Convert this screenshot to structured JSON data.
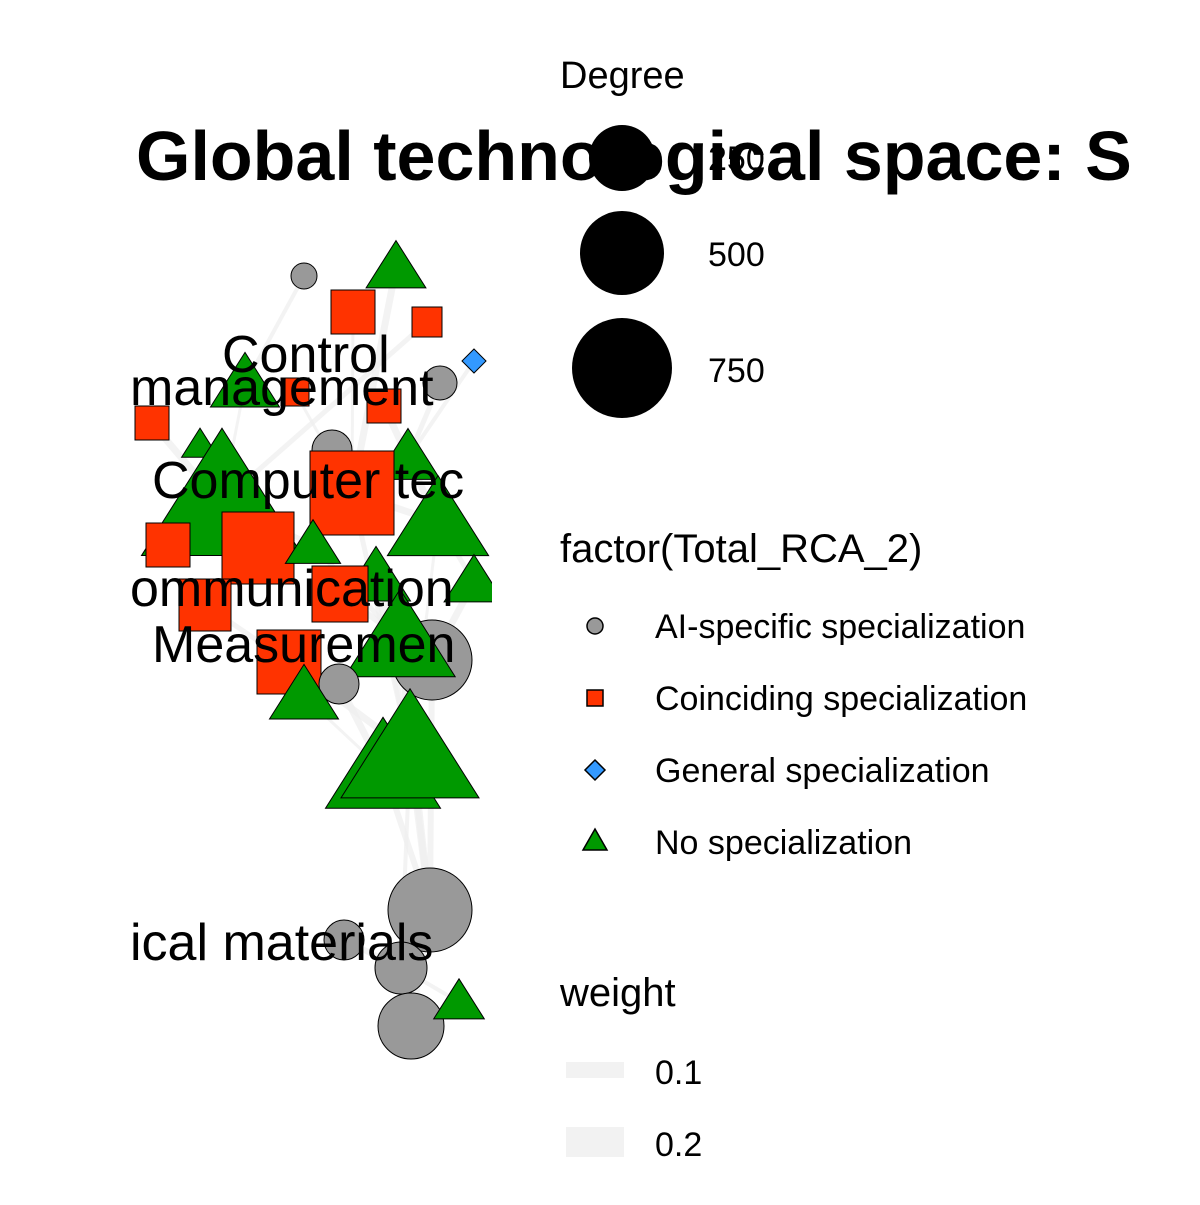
{
  "title": "Global technological space: S",
  "node_labels": [
    "Control",
    "management",
    "Computer tec",
    "ommunication",
    "Measuremen",
    "ical materials"
  ],
  "legend_degree": {
    "title": "Degree",
    "entries": [
      "250",
      "500",
      "750"
    ]
  },
  "legend_type": {
    "title": "factor(Total_RCA_2)",
    "entries": [
      {
        "label": "AI-specific specialization",
        "shape": "circle",
        "color": "#999999"
      },
      {
        "label": "Coinciding specialization",
        "shape": "square",
        "color": "#FF3300"
      },
      {
        "label": "General specialization",
        "shape": "diamond",
        "color": "#3399FF"
      },
      {
        "label": "No specialization",
        "shape": "triangle",
        "color": "#009900"
      }
    ]
  },
  "legend_weight": {
    "title": "weight",
    "entries": [
      "0.1",
      "0.2"
    ]
  },
  "colors": {
    "ai": "#999999",
    "coinciding": "#FF3300",
    "general": "#3399FF",
    "none": "#009900",
    "edge": "#eeeeee",
    "background": "#ffffff"
  }
}
